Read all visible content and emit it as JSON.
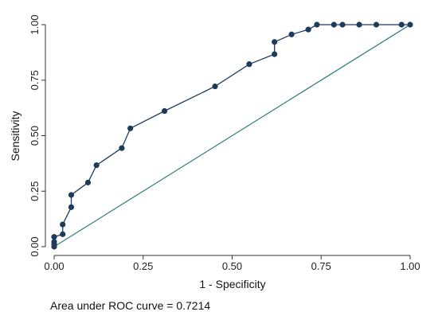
{
  "chart_data": {
    "type": "line",
    "xlabel": "1 - Specificity",
    "ylabel": "Sensitivity",
    "xlim": [
      0,
      1
    ],
    "ylim": [
      0,
      1
    ],
    "x_ticks": [
      "0.00",
      "0.25",
      "0.50",
      "0.75",
      "1.00"
    ],
    "y_ticks": [
      "0.00",
      "0.25",
      "0.50",
      "0.75",
      "1.00"
    ],
    "grid": false,
    "colors": {
      "curve": "#1f3b5c",
      "marker": "#1f3b5c",
      "reference": "#2e7d7a",
      "axis": "#333333"
    },
    "series": [
      {
        "x": [
          0.0,
          0.0,
          0.0,
          0.0,
          0.024,
          0.024,
          0.048,
          0.048,
          0.095,
          0.119,
          0.19,
          0.214,
          0.31,
          0.452,
          0.548,
          0.619,
          0.619,
          0.667,
          0.714,
          0.738,
          0.786,
          0.81,
          0.857,
          0.905,
          0.976,
          1.0
        ],
        "y": [
          0.0,
          0.011,
          0.022,
          0.044,
          0.056,
          0.1,
          0.178,
          0.233,
          0.289,
          0.367,
          0.444,
          0.533,
          0.611,
          0.722,
          0.822,
          0.867,
          0.922,
          0.956,
          0.978,
          1.0,
          1.0,
          1.0,
          1.0,
          1.0,
          1.0,
          1.0
        ]
      }
    ],
    "reference_line": {
      "x": [
        0,
        1
      ],
      "y": [
        0,
        1
      ]
    }
  },
  "footer": {
    "auc_text": "Area under ROC curve = 0.7214"
  }
}
